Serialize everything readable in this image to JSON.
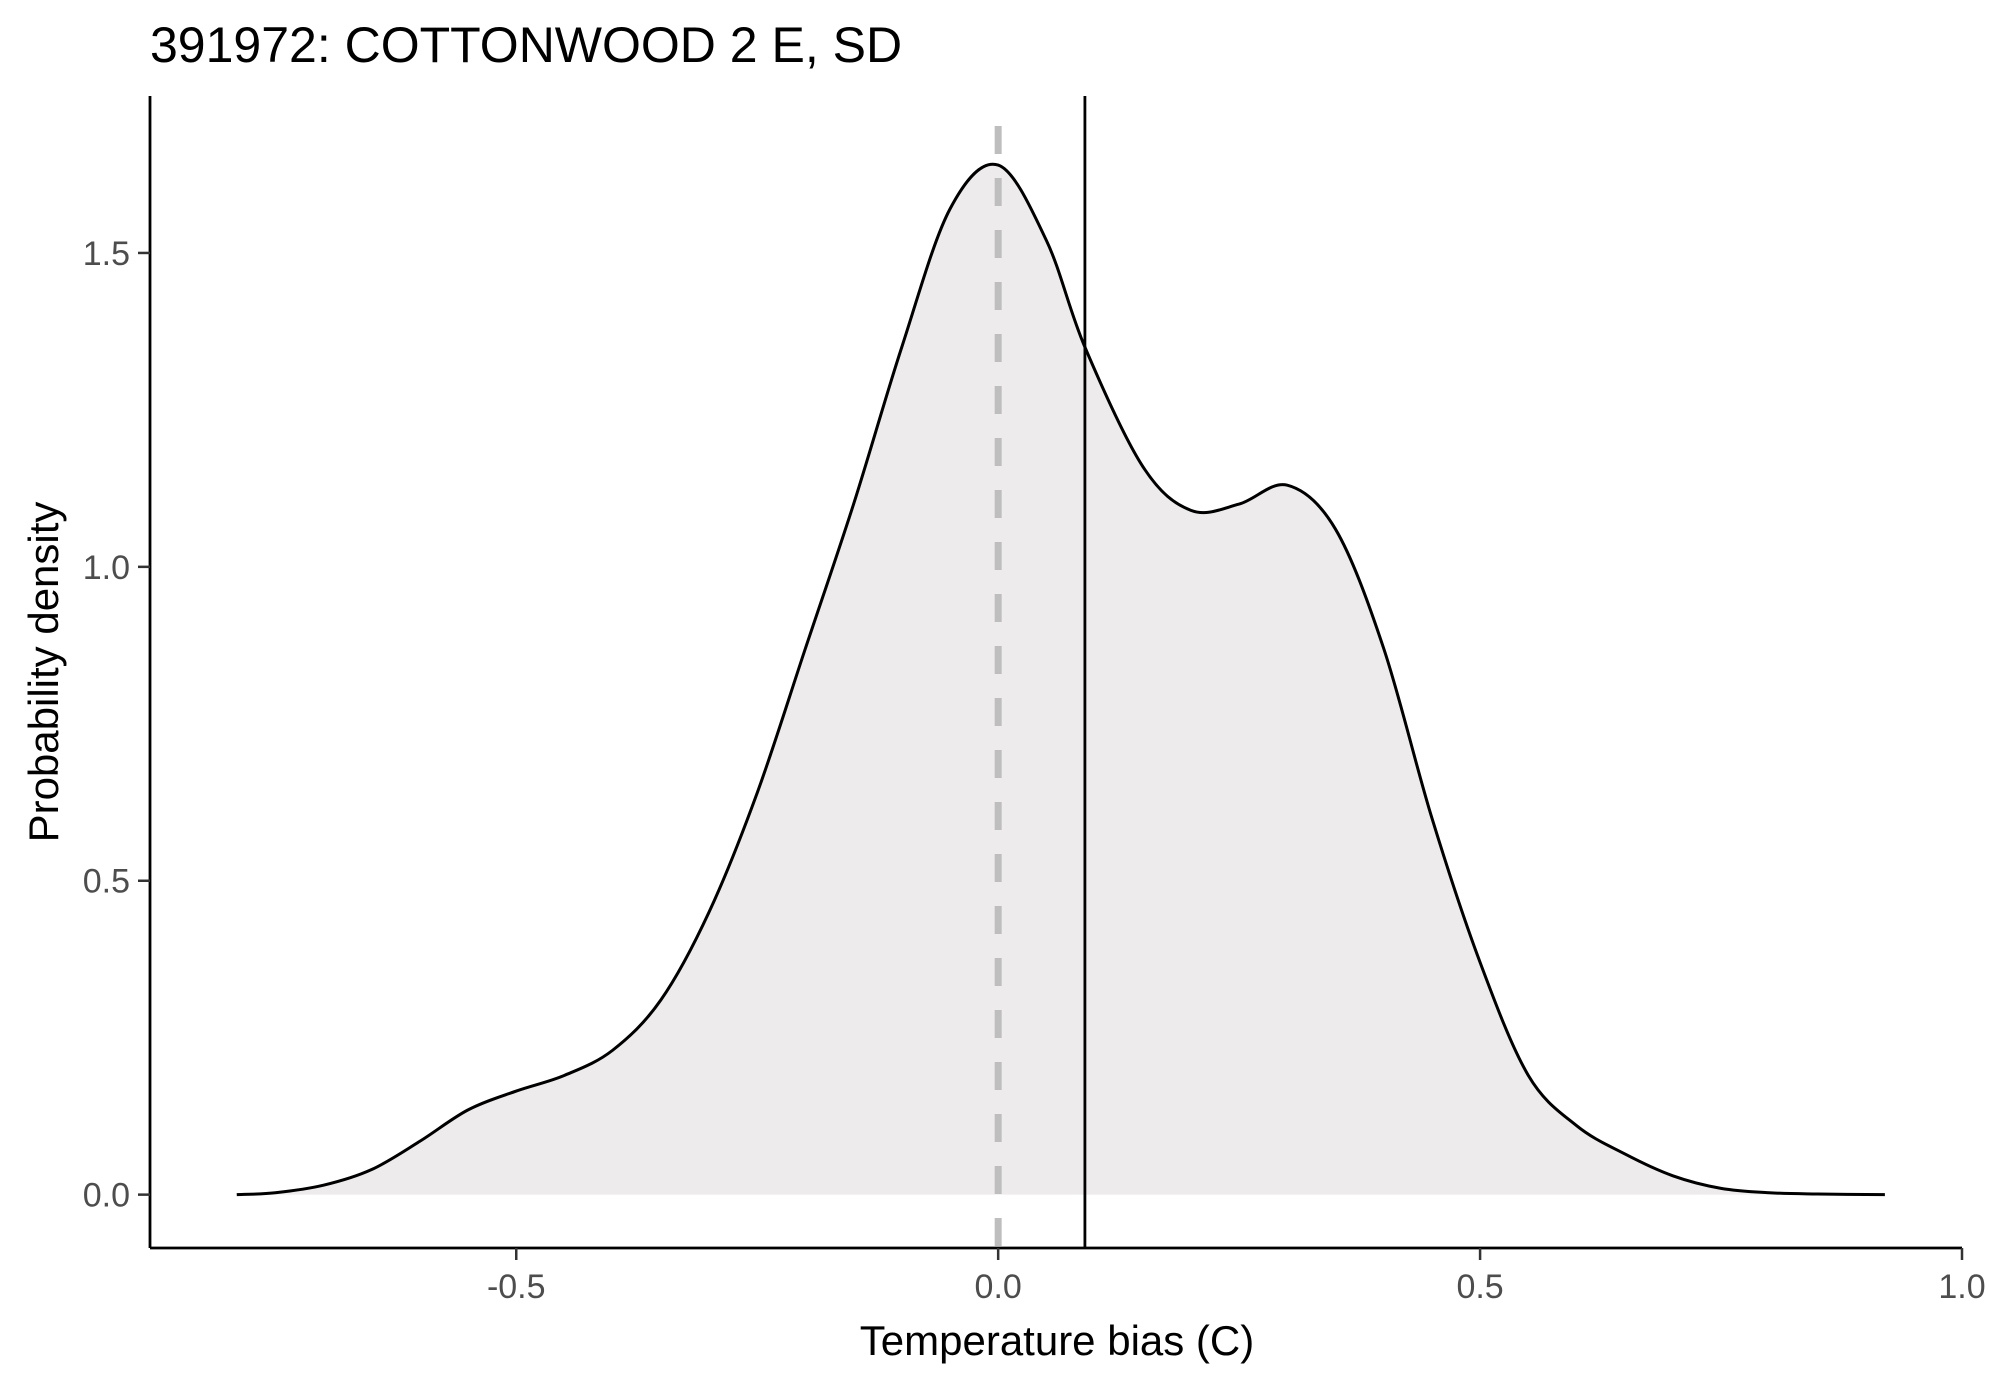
{
  "chart_data": {
    "type": "area",
    "title": "391972: COTTONWOOD 2 E, SD",
    "xlabel": "Temperature bias (C)",
    "ylabel": "Probability density",
    "xlim": [
      -0.88,
      1.0
    ],
    "ylim": [
      -0.085,
      1.75
    ],
    "x_ticks": [
      -0.5,
      0.0,
      0.5,
      1.0
    ],
    "x_tick_labels": [
      "-0.5",
      "0.0",
      "0.5",
      "1.0"
    ],
    "y_ticks": [
      0.0,
      0.5,
      1.0,
      1.5
    ],
    "y_tick_labels": [
      "0.0",
      "0.5",
      "1.0",
      "1.5"
    ],
    "grid": false,
    "legend": "none",
    "colors": {
      "fill": "#edebeb",
      "curve": "#000000",
      "zero_line": "#bebebe",
      "mean_line": "#000000"
    },
    "reference_lines": [
      {
        "x": 0.0,
        "style": "dashed"
      },
      {
        "x": 0.09,
        "style": "solid"
      }
    ],
    "series": [
      {
        "x": [
          -0.79,
          -0.75,
          -0.7,
          -0.65,
          -0.6,
          -0.55,
          -0.5,
          -0.45,
          -0.4,
          -0.35,
          -0.3,
          -0.25,
          -0.2,
          -0.15,
          -0.1,
          -0.05,
          0.0,
          0.05,
          0.09,
          0.15,
          0.2,
          0.25,
          0.3,
          0.35,
          0.4,
          0.45,
          0.5,
          0.55,
          0.6,
          0.65,
          0.7,
          0.75,
          0.8,
          0.85,
          0.92
        ],
        "y": [
          0.0,
          0.003,
          0.015,
          0.04,
          0.085,
          0.135,
          0.165,
          0.19,
          0.23,
          0.31,
          0.45,
          0.64,
          0.87,
          1.1,
          1.35,
          1.57,
          1.64,
          1.52,
          1.35,
          1.16,
          1.09,
          1.1,
          1.13,
          1.06,
          0.87,
          0.6,
          0.37,
          0.19,
          0.11,
          0.065,
          0.03,
          0.01,
          0.003,
          0.001,
          0.0
        ]
      }
    ]
  }
}
